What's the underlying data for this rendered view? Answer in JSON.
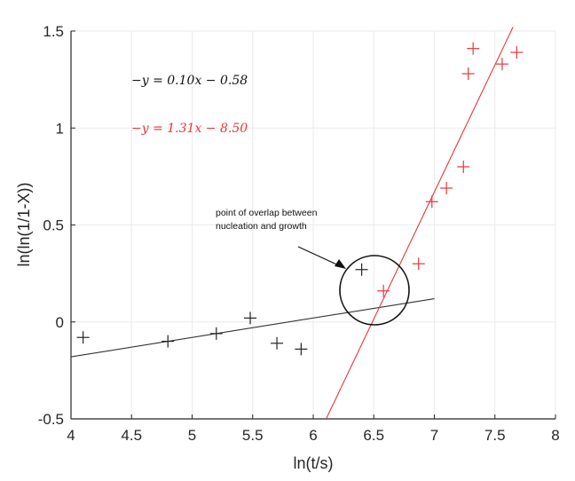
{
  "chart_data": {
    "type": "scatter",
    "title": "",
    "xlabel": "ln(t/s)",
    "ylabel": "ln(ln(1/1-X))",
    "xlim": [
      4,
      8
    ],
    "ylim": [
      -0.5,
      1.5
    ],
    "xticks": [
      "4",
      "4.5",
      "5",
      "5.5",
      "6",
      "6.5",
      "7",
      "7.5",
      "8"
    ],
    "yticks": [
      "1.5",
      "1",
      "0.5",
      "0",
      "-0.5"
    ],
    "grid": true,
    "legend": "none",
    "series": [
      {
        "name": "nucleation",
        "color": "#000000",
        "marker": "+",
        "points": [
          [
            4.1,
            -0.08
          ],
          [
            4.8,
            -0.1
          ],
          [
            5.2,
            -0.06
          ],
          [
            5.48,
            0.02
          ],
          [
            5.7,
            -0.11
          ],
          [
            5.9,
            -0.14
          ],
          [
            6.4,
            0.27
          ]
        ],
        "fit": {
          "equation": "−y = 0.10x  − 0.58",
          "slope": 0.1,
          "intercept": -0.58,
          "x_range": [
            4.0,
            7.0
          ]
        }
      },
      {
        "name": "growth",
        "color": "#e8353a",
        "marker": "+",
        "points": [
          [
            6.58,
            0.16
          ],
          [
            6.87,
            0.3
          ],
          [
            6.98,
            0.62
          ],
          [
            7.1,
            0.69
          ],
          [
            7.24,
            0.8
          ],
          [
            7.28,
            1.28
          ],
          [
            7.32,
            1.41
          ],
          [
            7.56,
            1.33
          ],
          [
            7.68,
            1.39
          ]
        ],
        "fit": {
          "equation": "−y = 1.31x  − 8.50",
          "slope": 1.31,
          "intercept": -8.5,
          "x_range": [
            6.11,
            7.65
          ]
        }
      }
    ],
    "annotations": [
      {
        "text": "point of overlap between nucleation and growth",
        "arrow_to": [
          6.4,
          0.28
        ],
        "circle_center": [
          6.51,
          0.16
        ],
        "circle_radius_px": 39
      }
    ]
  },
  "labels": {
    "eq_black": "−y = 0.10x  − 0.58",
    "eq_red": "−y = 1.31x  − 8.50",
    "annotation_line1": "point of overlap between",
    "annotation_line2": "nucleation and growth",
    "xlabel": "ln(t/s)",
    "ylabel": "ln(ln(1/1-X))",
    "xticks": [
      "4",
      "4.5",
      "5",
      "5.5",
      "6",
      "6.5",
      "7",
      "7.5",
      "8"
    ],
    "yticks": [
      "1.5",
      "1",
      "0.5",
      "0",
      "-0.5"
    ]
  },
  "colors": {
    "black": "#1a1a1a",
    "red": "#e8353a",
    "grid": "#ebebeb",
    "axis": "#262626"
  }
}
